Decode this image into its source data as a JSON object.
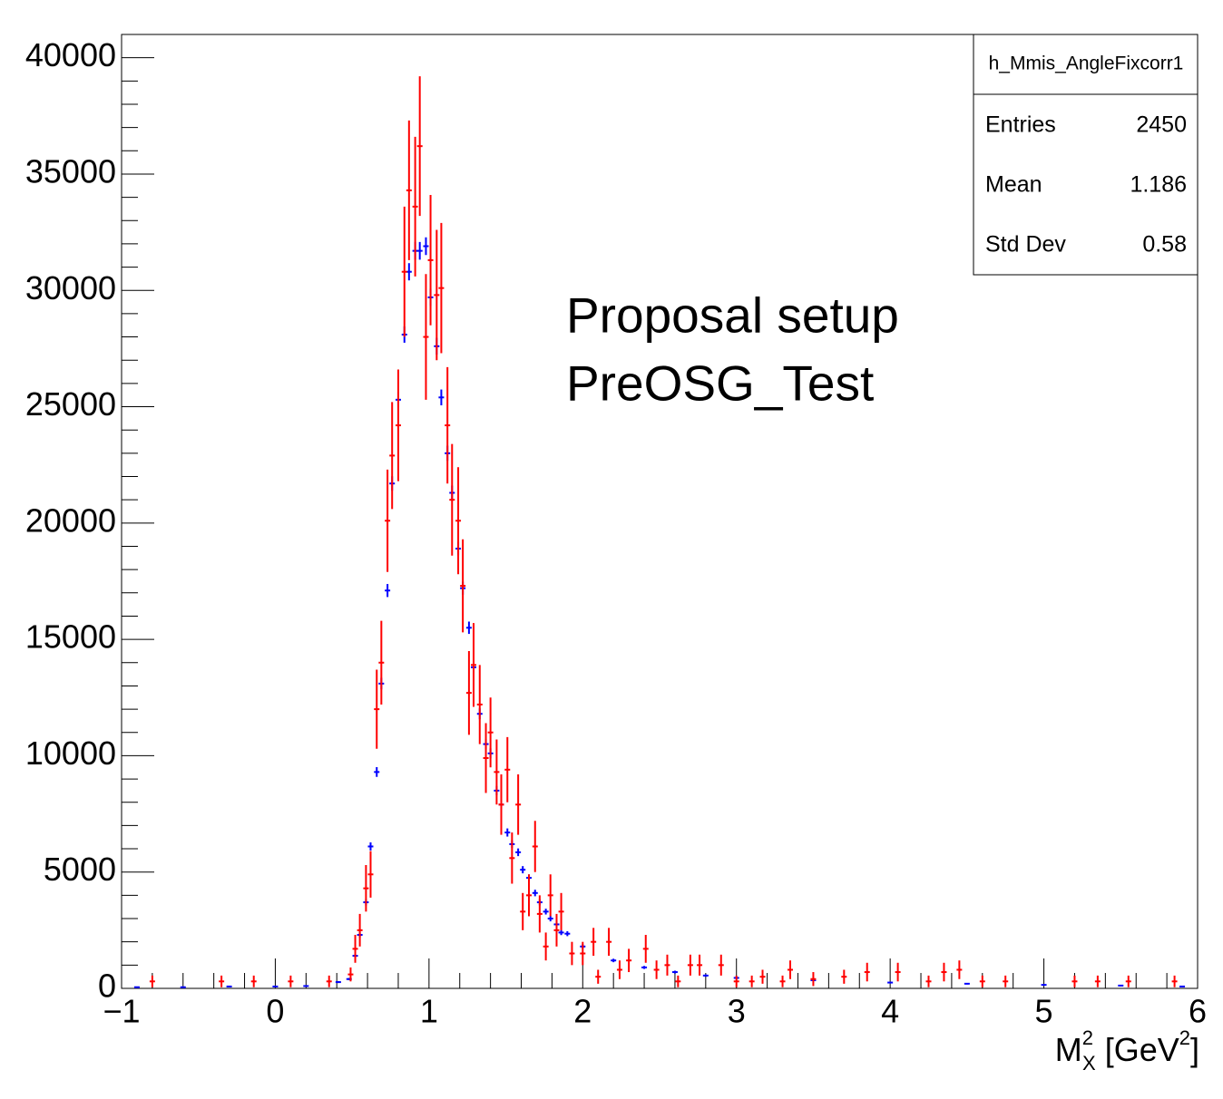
{
  "chart_data": {
    "type": "errorbar",
    "stats": {
      "title": "h_Mmis_AngleFixcorr1",
      "rows": [
        {
          "label": "Entries",
          "value": 2450
        },
        {
          "label": "Mean",
          "value": 1.186
        },
        {
          "label": "Std Dev",
          "value": 0.58
        }
      ]
    },
    "xlabel": {
      "base": "M",
      "sup": "2",
      "sub": "X",
      "unit": "[GeV",
      "unit_sup": "2",
      "close": "]"
    },
    "xlim": [
      -1,
      6
    ],
    "ylim": [
      0,
      41000
    ],
    "xticks": [
      {
        "value": -1,
        "label": "−1"
      },
      0,
      1,
      2,
      3,
      4,
      5,
      6
    ],
    "yticks": [
      0,
      5000,
      10000,
      15000,
      20000,
      25000,
      30000,
      35000,
      40000
    ],
    "series": [
      {
        "name": "Proposal setup",
        "color": "#0000ff",
        "x": [
          -0.9,
          -0.6,
          -0.3,
          0.0,
          0.2,
          0.41,
          0.48,
          0.52,
          0.55,
          0.59,
          0.62,
          0.66,
          0.69,
          0.73,
          0.76,
          0.8,
          0.84,
          0.87,
          0.91,
          0.94,
          0.98,
          1.01,
          1.05,
          1.08,
          1.12,
          1.15,
          1.19,
          1.22,
          1.26,
          1.29,
          1.33,
          1.37,
          1.4,
          1.44,
          1.47,
          1.51,
          1.54,
          1.58,
          1.61,
          1.65,
          1.69,
          1.72,
          1.76,
          1.79,
          1.83,
          1.86,
          1.9,
          2.0,
          2.2,
          2.4,
          2.6,
          2.8,
          3.0,
          3.5,
          4.0,
          4.5,
          5.0,
          5.5,
          5.9
        ],
        "values": [
          50,
          50,
          80,
          80,
          100,
          270,
          400,
          1400,
          2300,
          3700,
          6100,
          9300,
          13100,
          17100,
          21700,
          25300,
          28100,
          30800,
          31700,
          31700,
          31900,
          29700,
          27600,
          25400,
          23000,
          21300,
          18900,
          17200,
          15500,
          13800,
          11800,
          10500,
          10100,
          8500,
          7900,
          6700,
          6200,
          5850,
          5100,
          4750,
          4100,
          3700,
          3300,
          3000,
          2750,
          2400,
          2350,
          1800,
          1200,
          900,
          700,
          550,
          450,
          350,
          250,
          200,
          150,
          120,
          80
        ],
        "errors": [
          15,
          15,
          20,
          20,
          20,
          40,
          50,
          90,
          110,
          140,
          175,
          210,
          250,
          280,
          310,
          340,
          350,
          370,
          380,
          380,
          380,
          370,
          360,
          340,
          325,
          310,
          295,
          280,
          265,
          250,
          235,
          220,
          215,
          200,
          190,
          175,
          170,
          165,
          155,
          150,
          140,
          130,
          125,
          120,
          115,
          110,
          105,
          95,
          75,
          65,
          60,
          50,
          45,
          40,
          35,
          30,
          28,
          25,
          20
        ]
      },
      {
        "name": "PreOSG_Test",
        "color": "#ff0000",
        "x": [
          -0.8,
          -0.35,
          -0.14,
          0.1,
          0.35,
          0.49,
          0.52,
          0.55,
          0.59,
          0.62,
          0.66,
          0.69,
          0.73,
          0.76,
          0.8,
          0.84,
          0.87,
          0.91,
          0.94,
          0.98,
          1.01,
          1.05,
          1.08,
          1.12,
          1.15,
          1.19,
          1.22,
          1.26,
          1.29,
          1.33,
          1.37,
          1.4,
          1.44,
          1.47,
          1.51,
          1.54,
          1.58,
          1.61,
          1.65,
          1.69,
          1.72,
          1.76,
          1.79,
          1.83,
          1.86,
          1.93,
          2.0,
          2.07,
          2.1,
          2.17,
          2.24,
          2.3,
          2.41,
          2.48,
          2.55,
          2.62,
          2.7,
          2.76,
          2.9,
          3.0,
          3.1,
          3.17,
          3.3,
          3.35,
          3.5,
          3.7,
          3.85,
          4.05,
          4.25,
          4.35,
          4.45,
          4.6,
          4.75,
          5.2,
          5.35,
          5.55,
          5.85
        ],
        "values": [
          300,
          300,
          300,
          300,
          300,
          600,
          1700,
          2500,
          4300,
          4900,
          12000,
          14000,
          20100,
          22900,
          24200,
          30800,
          34300,
          33600,
          36200,
          28000,
          31300,
          29800,
          30100,
          24200,
          21000,
          20100,
          17300,
          12700,
          13900,
          12200,
          9900,
          11000,
          9300,
          7900,
          9400,
          5600,
          7900,
          3300,
          4000,
          6100,
          3200,
          1800,
          4000,
          2500,
          3300,
          1500,
          1500,
          2000,
          500,
          2000,
          800,
          1200,
          1700,
          800,
          1000,
          300,
          1000,
          1000,
          1000,
          300,
          300,
          500,
          300,
          800,
          400,
          500,
          700,
          700,
          300,
          700,
          800,
          300,
          300,
          300,
          300,
          300,
          300
        ],
        "errors": [
          250,
          250,
          250,
          250,
          250,
          300,
          600,
          700,
          1000,
          1000,
          1700,
          1800,
          2200,
          2300,
          2400,
          2800,
          3000,
          3000,
          3000,
          2700,
          2800,
          2800,
          2800,
          2500,
          2400,
          2300,
          2000,
          1800,
          1800,
          1700,
          1500,
          1500,
          1400,
          1300,
          1400,
          1100,
          1300,
          800,
          900,
          1100,
          800,
          600,
          900,
          700,
          800,
          500,
          500,
          600,
          300,
          600,
          400,
          500,
          600,
          400,
          450,
          250,
          450,
          450,
          450,
          250,
          250,
          300,
          250,
          400,
          300,
          300,
          400,
          400,
          250,
          400,
          400,
          250,
          250,
          250,
          250,
          250,
          250
        ]
      }
    ]
  }
}
